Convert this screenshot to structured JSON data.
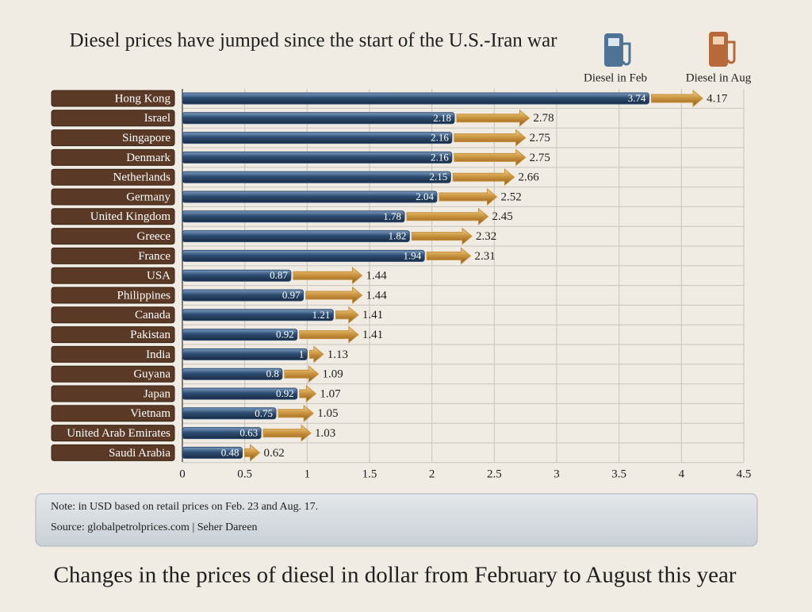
{
  "chart_data": {
    "type": "bar",
    "orientation": "horizontal",
    "title": "Diesel prices have jumped since the start of the U.S.-Iran war",
    "categories": [
      "Hong Kong",
      "Israel",
      "Singapore",
      "Denmark",
      "Netherlands",
      "Germany",
      "United Kingdom",
      "Greece",
      "France",
      "USA",
      "Philippines",
      "Canada",
      "Pakistan",
      "India",
      "Guyana",
      "Japan",
      "Vietnam",
      "United Arab Emirates",
      "Saudi Arabia"
    ],
    "series": [
      {
        "name": "Diesel in Feb",
        "color": "#2e4d72",
        "values": [
          3.74,
          2.18,
          2.16,
          2.16,
          2.15,
          2.04,
          1.78,
          1.82,
          1.94,
          0.87,
          0.97,
          1.21,
          0.92,
          1,
          0.8,
          0.92,
          0.75,
          0.63,
          0.48
        ]
      },
      {
        "name": "Diesel in Aug",
        "color": "#c8913c",
        "values": [
          4.17,
          2.78,
          2.75,
          2.75,
          2.66,
          2.52,
          2.45,
          2.32,
          2.31,
          1.44,
          1.44,
          1.41,
          1.41,
          1.13,
          1.09,
          1.07,
          1.05,
          1.03,
          0.62
        ]
      }
    ],
    "xlim": [
      0,
      4.5
    ],
    "xticks": [
      0,
      0.5,
      1,
      1.5,
      2,
      2.5,
      3,
      3.5,
      4,
      4.5
    ],
    "grid": true,
    "notes": [
      "Note: in USD based on retail prices on Feb. 23 and Aug. 17.",
      "Source: globalpetrolprices.com | Seher Dareen"
    ],
    "caption": "Changes in the prices of diesel in dollar from February to August this year"
  }
}
